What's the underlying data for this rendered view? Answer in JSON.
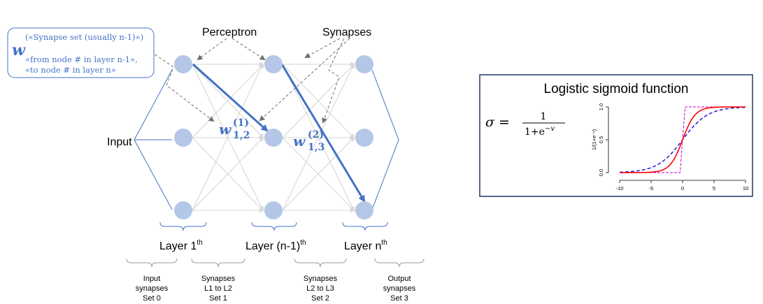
{
  "legend_box": {
    "symbol": "w",
    "line1": "(«Synapse set (usually n-1)»)",
    "line2": "«from node # in layer n-1»,",
    "line3": "«to node # in layer n»"
  },
  "annotations": {
    "perceptron": "Perceptron",
    "synapses": "Synapses",
    "input": "Input",
    "w1_base": "w",
    "w1_sup": "(1)",
    "w1_sub": "1,2",
    "w2_base": "w",
    "w2_sup": "(2)",
    "w2_sub": "1,3"
  },
  "layers": [
    {
      "name": "Layer 1",
      "sup": "th"
    },
    {
      "name": "Layer (n-1)",
      "sup": "th"
    },
    {
      "name": "Layer n",
      "sup": "th"
    }
  ],
  "synapse_sets": [
    {
      "l1": "Input",
      "l2": "synapses",
      "l3": "Set 0"
    },
    {
      "l1": "Synapses",
      "l2": "L1 to L2",
      "l3": "Set 1"
    },
    {
      "l1": "Synapses",
      "l2": "L2 to L3",
      "l3": "Set 2"
    },
    {
      "l1": "Output",
      "l2": "synapses",
      "l3": "Set 3"
    }
  ],
  "sigmoid": {
    "title": "Logistic sigmoid function",
    "formula_lhs": "σ =",
    "formula_num": "1",
    "formula_den": "1+e",
    "formula_exp": "−v",
    "ylabel": "1/(1+e⁻ᵛ)",
    "xticks": [
      "-10",
      "-5",
      "0",
      "5",
      "10"
    ],
    "yticks": [
      "0.0",
      "0.5",
      "1.0"
    ]
  },
  "colors": {
    "node": "#b4c7e7",
    "highlight": "#4472c4",
    "edge": "#d0d0d0",
    "sig_red": "#ff0000",
    "sig_blue": "#0000cc",
    "sig_magenta": "#cc00cc"
  }
}
